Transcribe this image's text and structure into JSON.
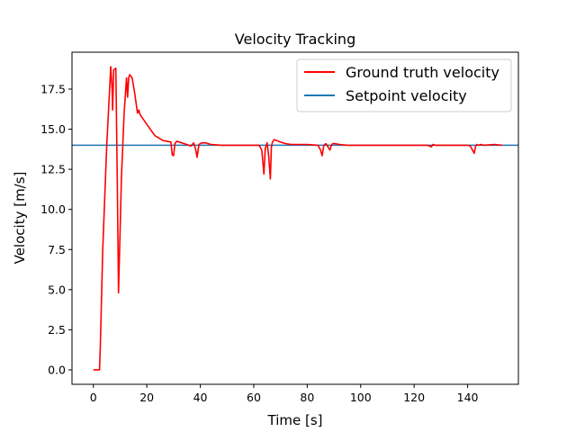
{
  "chart_data": {
    "type": "line",
    "title": "Velocity Tracking",
    "xlabel": "Time [s]",
    "ylabel": "Velocity [m/s]",
    "xlim": [
      -8,
      159
    ],
    "ylim": [
      -0.9,
      19.8
    ],
    "xticks": [
      0,
      20,
      40,
      60,
      80,
      100,
      120,
      140
    ],
    "xtick_labels": [
      "0",
      "20",
      "40",
      "60",
      "80",
      "100",
      "120",
      "140"
    ],
    "yticks": [
      0.0,
      2.5,
      5.0,
      7.5,
      10.0,
      12.5,
      15.0,
      17.5
    ],
    "ytick_labels": [
      "0.0",
      "2.5",
      "5.0",
      "7.5",
      "10.0",
      "12.5",
      "15.0",
      "17.5"
    ],
    "grid": false,
    "legend_position": "top-right",
    "series": [
      {
        "name": "Ground truth velocity",
        "color": "#ff0000",
        "x": [
          0,
          2.3,
          2.6,
          3.5,
          5,
          6.5,
          7,
          7.2,
          7.6,
          8.4,
          9,
          9.4,
          10.5,
          11.5,
          12.4,
          12.8,
          13.2,
          13.6,
          14.5,
          15.5,
          16.5,
          17.0,
          17.5,
          20,
          23,
          26,
          29,
          29.5,
          30,
          30.5,
          31.2,
          34,
          36.5,
          37.5,
          38.2,
          38.8,
          39.5,
          40.5,
          42,
          44,
          48,
          55,
          62,
          63,
          63.8,
          64.3,
          65,
          65.6,
          66.2,
          66.6,
          67,
          67.6,
          68.5,
          70,
          72,
          74,
          76,
          78,
          80,
          84,
          85,
          85.6,
          86.2,
          87,
          88.5,
          89,
          89.5,
          90.5,
          92,
          95,
          100,
          110,
          120,
          125,
          126.5,
          127,
          128,
          135,
          140,
          141,
          142.5,
          143,
          143.5,
          144,
          145,
          146,
          150,
          153
        ],
        "y": [
          0,
          0,
          1.5,
          7.5,
          14,
          18.9,
          17.5,
          16.2,
          18.7,
          18.8,
          11,
          4.8,
          12,
          16,
          18.2,
          17,
          18.2,
          18.4,
          18.2,
          17.2,
          16,
          16.2,
          15.9,
          15.3,
          14.6,
          14.3,
          14.2,
          13.4,
          13.35,
          14.1,
          14.25,
          14.1,
          13.95,
          14.15,
          13.8,
          13.25,
          14.05,
          14.15,
          14.15,
          14.05,
          14.0,
          14.0,
          14.0,
          13.7,
          12.2,
          13.8,
          14.15,
          13.3,
          11.9,
          13.9,
          14.2,
          14.35,
          14.3,
          14.2,
          14.1,
          14.05,
          14.05,
          14.05,
          14.05,
          14.0,
          13.7,
          13.35,
          14.0,
          14.1,
          13.7,
          14.0,
          14.1,
          14.1,
          14.05,
          14.0,
          14.0,
          14.0,
          14.0,
          14.0,
          13.9,
          14.05,
          14.0,
          14.0,
          14.0,
          13.95,
          13.5,
          13.95,
          14.05,
          14.0,
          14.05,
          14.0,
          14.05,
          14.0
        ]
      },
      {
        "name": "Setpoint velocity",
        "color": "#1f77b4",
        "x": [
          -8,
          159
        ],
        "y": [
          14.0,
          14.0
        ]
      }
    ]
  }
}
